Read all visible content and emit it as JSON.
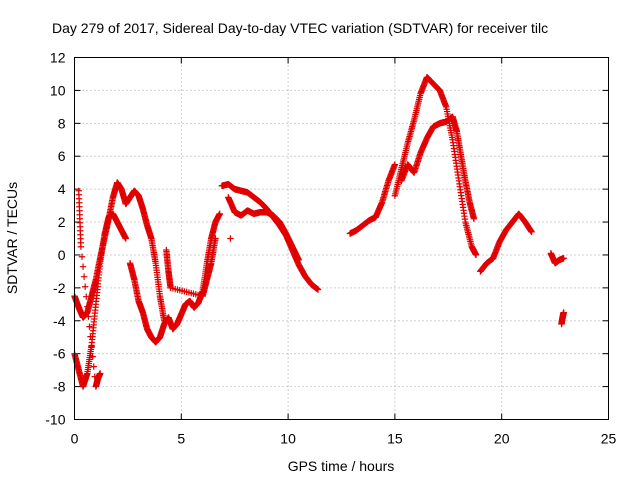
{
  "chart_data": {
    "type": "scatter",
    "title": "Day 279 of 2017, Sidereal Day-to-day VTEC variation (SDTVAR) for receiver tilc",
    "xlabel": "GPS time / hours",
    "ylabel": "SDTVAR / TECUs",
    "xlim": [
      0,
      25
    ],
    "ylim": [
      -10,
      12
    ],
    "xticks": [
      0,
      5,
      10,
      15,
      20,
      25
    ],
    "yticks": [
      -10,
      -8,
      -6,
      -4,
      -2,
      0,
      2,
      4,
      6,
      8,
      10,
      12
    ],
    "grid": true,
    "marker": "+",
    "color": "#e00000",
    "series": [
      {
        "name": "SDTVAR",
        "segments": [
          {
            "x": [
              0.0,
              0.2,
              0.4,
              0.6,
              0.8,
              1.0,
              1.2,
              1.4,
              1.6,
              1.8,
              2.0,
              2.2,
              2.4,
              2.6,
              2.8,
              3.0,
              3.2,
              3.4,
              3.6,
              3.8,
              4.0,
              4.2
            ],
            "y": [
              -2.5,
              -3.2,
              -3.8,
              -3.5,
              -2.5,
              -1.5,
              -0.2,
              1.0,
              2.2,
              3.5,
              4.4,
              4.0,
              3.1,
              3.5,
              3.9,
              3.6,
              2.8,
              1.8,
              1.0,
              -0.5,
              -2.5,
              -4.0
            ]
          },
          {
            "x": [
              0.0,
              0.2,
              0.4,
              0.6,
              0.8,
              1.0,
              1.2,
              1.4,
              1.6,
              1.8,
              2.0,
              2.2,
              2.4
            ],
            "y": [
              -6.0,
              -7.0,
              -8.0,
              -7.2,
              -5.5,
              -3.0,
              -0.5,
              1.2,
              2.3,
              2.5,
              2.0,
              1.5,
              1.0
            ]
          },
          {
            "x": [
              0.2,
              0.3,
              1.0,
              1.1,
              1.2
            ],
            "y": [
              3.9,
              0.5,
              -8.0,
              -7.5,
              -7.2
            ]
          },
          {
            "x": [
              2.6,
              2.8,
              3.0,
              3.2,
              3.4,
              3.6,
              3.8,
              4.0,
              4.2,
              4.4,
              4.6,
              4.8,
              5.0,
              5.2,
              5.4,
              5.6,
              5.8,
              6.0,
              6.2,
              6.4,
              6.6,
              6.8
            ],
            "y": [
              -0.5,
              -1.5,
              -2.8,
              -3.5,
              -4.5,
              -5.0,
              -5.3,
              -5.0,
              -4.2,
              -3.8,
              -4.5,
              -4.2,
              -3.6,
              -3.0,
              -2.8,
              -3.2,
              -2.9,
              -2.2,
              -0.5,
              1.0,
              2.0,
              2.5
            ]
          },
          {
            "x": [
              4.3,
              4.4,
              4.5,
              6.0,
              6.2,
              6.4,
              6.6
            ],
            "y": [
              0.3,
              -1.0,
              -2.0,
              -2.5,
              -1.5,
              -0.5,
              1.0
            ]
          },
          {
            "x": [
              6.9,
              7.2,
              7.5,
              7.8,
              8.1,
              8.4,
              8.7,
              9.0,
              9.3,
              9.6,
              9.9,
              10.2,
              10.5,
              10.8,
              11.1,
              11.4
            ],
            "y": [
              4.2,
              4.3,
              4.0,
              3.9,
              3.8,
              3.5,
              3.2,
              2.8,
              2.3,
              1.8,
              1.2,
              0.3,
              -0.6,
              -1.3,
              -1.8,
              -2.1
            ]
          },
          {
            "x": [
              7.2,
              7.5,
              7.8,
              8.1,
              8.4,
              8.7,
              9.0,
              9.3,
              9.6,
              9.9,
              10.2,
              10.5
            ],
            "y": [
              3.5,
              2.6,
              2.4,
              2.7,
              2.5,
              2.6,
              2.6,
              2.4,
              2.0,
              1.3,
              0.5,
              -0.3
            ]
          },
          {
            "x": [
              7.3
            ],
            "y": [
              1.0
            ]
          },
          {
            "x": [
              12.9,
              13.2,
              13.5,
              13.8,
              14.1,
              14.4,
              14.7,
              15.0
            ],
            "y": [
              1.3,
              1.5,
              1.8,
              2.1,
              2.3,
              3.2,
              4.5,
              5.5
            ]
          },
          {
            "x": [
              15.0,
              15.3,
              15.6,
              15.9,
              16.2,
              16.5,
              16.8,
              17.1,
              17.4,
              17.7,
              18.0,
              18.3,
              18.6,
              18.8
            ],
            "y": [
              3.6,
              5.2,
              6.8,
              8.2,
              9.8,
              10.8,
              10.4,
              10.0,
              9.0,
              7.0,
              4.5,
              2.0,
              0.5,
              0.0
            ]
          },
          {
            "x": [
              15.3,
              15.6,
              15.9,
              16.2,
              16.5,
              16.8,
              17.1,
              17.4,
              17.7,
              17.9,
              18.1,
              18.3,
              18.5,
              18.7
            ],
            "y": [
              4.5,
              5.5,
              5.0,
              6.2,
              7.1,
              7.8,
              8.0,
              8.1,
              8.4,
              7.5,
              6.0,
              4.5,
              3.2,
              2.2
            ]
          },
          {
            "x": [
              19.0,
              19.3,
              19.6,
              19.9,
              20.2,
              20.5,
              20.8,
              21.1,
              21.4
            ],
            "y": [
              -1.0,
              -0.5,
              -0.2,
              0.8,
              1.5,
              2.0,
              2.5,
              2.0,
              1.4
            ]
          },
          {
            "x": [
              22.3,
              22.5,
              22.7,
              22.9
            ],
            "y": [
              0.1,
              -0.5,
              -0.3,
              -0.2
            ]
          },
          {
            "x": [
              22.8,
              22.85,
              22.9
            ],
            "y": [
              -4.2,
              -3.8,
              -3.5
            ]
          }
        ]
      }
    ]
  }
}
